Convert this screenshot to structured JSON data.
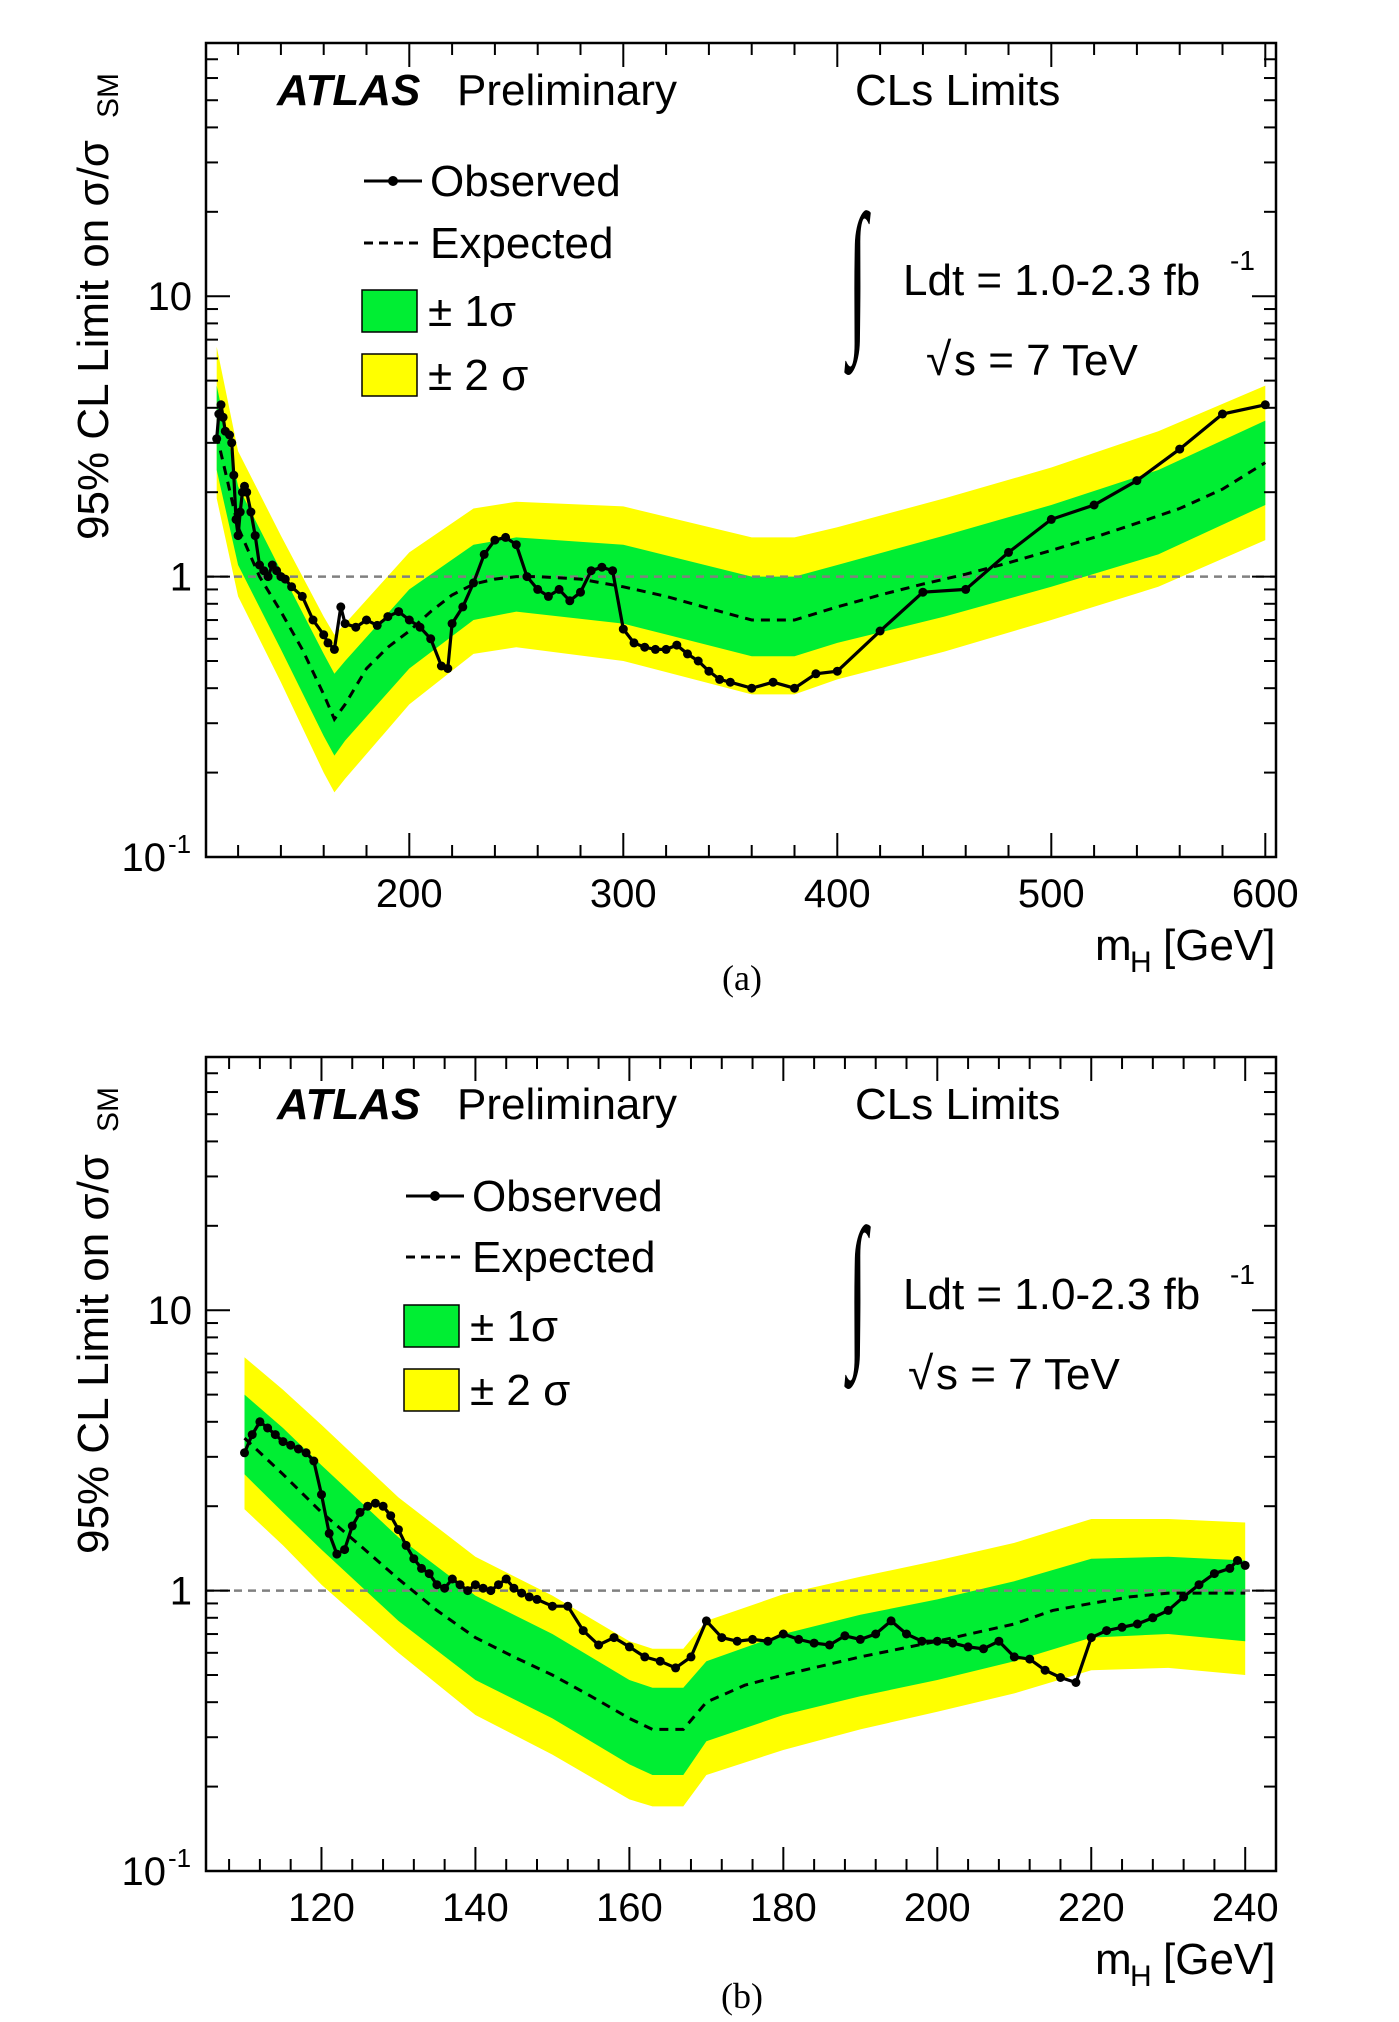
{
  "colors": {
    "band1": "#00ee33",
    "band2": "#ffff00",
    "observed": "#000000",
    "expected": "#000000",
    "reference": "#808080"
  },
  "texts": {
    "atlas": "ATLAS",
    "preliminary": "Preliminary",
    "method": "CLs Limits",
    "lumi": "Ldt = 1.0-2.3 fb",
    "lumi_exp": "-1",
    "sqrts": "s = 7 TeV",
    "legend_observed": "Observed",
    "legend_expected": "Expected",
    "legend_1sigma": "± 1σ",
    "legend_2sigma": "± 2 σ",
    "ylabel_main": "95% CL Limit on σ/σ",
    "ylabel_sub": "SM",
    "xlabel_main": "m",
    "xlabel_sub": "H",
    "xlabel_unit": "[GeV]"
  },
  "chart_data": [
    {
      "type": "line",
      "caption": "(a)",
      "xlim": [
        105,
        605
      ],
      "ylim": [
        0.1,
        80
      ],
      "yscale": "log",
      "xticks": [
        200,
        300,
        400,
        500,
        600
      ],
      "yticks": [
        {
          "v": 0.1,
          "base": "10",
          "exp": "-1"
        },
        {
          "v": 1,
          "base": "1",
          "exp": ""
        },
        {
          "v": 10,
          "base": "10",
          "exp": ""
        }
      ],
      "reference_line": 1,
      "expected": [
        [
          110,
          3.2
        ],
        [
          115,
          2.2
        ],
        [
          120,
          1.5
        ],
        [
          130,
          1.0
        ],
        [
          140,
          0.75
        ],
        [
          150,
          0.55
        ],
        [
          160,
          0.38
        ],
        [
          165,
          0.31
        ],
        [
          170,
          0.35
        ],
        [
          180,
          0.47
        ],
        [
          190,
          0.56
        ],
        [
          200,
          0.64
        ],
        [
          210,
          0.75
        ],
        [
          220,
          0.86
        ],
        [
          230,
          0.94
        ],
        [
          240,
          0.98
        ],
        [
          250,
          1.0
        ],
        [
          260,
          1.0
        ],
        [
          280,
          0.98
        ],
        [
          300,
          0.92
        ],
        [
          320,
          0.85
        ],
        [
          340,
          0.77
        ],
        [
          360,
          0.7
        ],
        [
          380,
          0.7
        ],
        [
          400,
          0.78
        ],
        [
          420,
          0.86
        ],
        [
          440,
          0.94
        ],
        [
          460,
          1.02
        ],
        [
          480,
          1.12
        ],
        [
          500,
          1.24
        ],
        [
          520,
          1.38
        ],
        [
          540,
          1.55
        ],
        [
          560,
          1.75
        ],
        [
          580,
          2.05
        ],
        [
          600,
          2.55
        ]
      ],
      "band1": [
        [
          110,
          2.4,
          4.8
        ],
        [
          120,
          1.1,
          2.1
        ],
        [
          140,
          0.55,
          1.05
        ],
        [
          160,
          0.27,
          0.53
        ],
        [
          165,
          0.23,
          0.45
        ],
        [
          170,
          0.26,
          0.5
        ],
        [
          200,
          0.47,
          0.9
        ],
        [
          230,
          0.7,
          1.3
        ],
        [
          250,
          0.75,
          1.38
        ],
        [
          300,
          0.68,
          1.3
        ],
        [
          360,
          0.52,
          1.0
        ],
        [
          380,
          0.52,
          1.0
        ],
        [
          400,
          0.58,
          1.1
        ],
        [
          450,
          0.72,
          1.4
        ],
        [
          500,
          0.92,
          1.8
        ],
        [
          550,
          1.2,
          2.4
        ],
        [
          600,
          1.8,
          3.6
        ]
      ],
      "band2": [
        [
          110,
          1.9,
          6.6
        ],
        [
          120,
          0.85,
          2.8
        ],
        [
          140,
          0.42,
          1.4
        ],
        [
          160,
          0.2,
          0.72
        ],
        [
          165,
          0.17,
          0.62
        ],
        [
          170,
          0.19,
          0.68
        ],
        [
          200,
          0.35,
          1.22
        ],
        [
          230,
          0.53,
          1.75
        ],
        [
          250,
          0.56,
          1.85
        ],
        [
          300,
          0.5,
          1.78
        ],
        [
          360,
          0.38,
          1.38
        ],
        [
          380,
          0.38,
          1.38
        ],
        [
          400,
          0.43,
          1.5
        ],
        [
          450,
          0.54,
          1.9
        ],
        [
          500,
          0.7,
          2.45
        ],
        [
          550,
          0.92,
          3.3
        ],
        [
          600,
          1.35,
          4.8
        ]
      ],
      "observed": [
        [
          110,
          3.1
        ],
        [
          111,
          3.8
        ],
        [
          112,
          4.1
        ],
        [
          113,
          3.7
        ],
        [
          114,
          3.3
        ],
        [
          116,
          3.2
        ],
        [
          117,
          3.0
        ],
        [
          118,
          2.3
        ],
        [
          119,
          1.6
        ],
        [
          120,
          1.4
        ],
        [
          121,
          1.7
        ],
        [
          122,
          2.0
        ],
        [
          123,
          2.1
        ],
        [
          124,
          2.0
        ],
        [
          126,
          1.7
        ],
        [
          128,
          1.4
        ],
        [
          130,
          1.1
        ],
        [
          132,
          1.05
        ],
        [
          134,
          1.0
        ],
        [
          136,
          1.1
        ],
        [
          138,
          1.05
        ],
        [
          140,
          1.0
        ],
        [
          142,
          0.98
        ],
        [
          145,
          0.92
        ],
        [
          150,
          0.85
        ],
        [
          155,
          0.7
        ],
        [
          160,
          0.62
        ],
        [
          162,
          0.58
        ],
        [
          165,
          0.55
        ],
        [
          168,
          0.78
        ],
        [
          170,
          0.68
        ],
        [
          175,
          0.66
        ],
        [
          180,
          0.7
        ],
        [
          185,
          0.67
        ],
        [
          190,
          0.72
        ],
        [
          195,
          0.75
        ],
        [
          200,
          0.7
        ],
        [
          205,
          0.66
        ],
        [
          210,
          0.6
        ],
        [
          215,
          0.48
        ],
        [
          218,
          0.47
        ],
        [
          220,
          0.68
        ],
        [
          225,
          0.78
        ],
        [
          230,
          0.95
        ],
        [
          235,
          1.2
        ],
        [
          240,
          1.35
        ],
        [
          245,
          1.38
        ],
        [
          250,
          1.3
        ],
        [
          255,
          1.0
        ],
        [
          260,
          0.9
        ],
        [
          265,
          0.85
        ],
        [
          270,
          0.9
        ],
        [
          275,
          0.82
        ],
        [
          280,
          0.88
        ],
        [
          285,
          1.05
        ],
        [
          290,
          1.08
        ],
        [
          295,
          1.05
        ],
        [
          300,
          0.65
        ],
        [
          305,
          0.58
        ],
        [
          310,
          0.56
        ],
        [
          315,
          0.55
        ],
        [
          320,
          0.55
        ],
        [
          325,
          0.57
        ],
        [
          330,
          0.53
        ],
        [
          335,
          0.5
        ],
        [
          340,
          0.46
        ],
        [
          345,
          0.43
        ],
        [
          350,
          0.42
        ],
        [
          360,
          0.4
        ],
        [
          370,
          0.42
        ],
        [
          380,
          0.4
        ],
        [
          390,
          0.45
        ],
        [
          400,
          0.46
        ],
        [
          420,
          0.64
        ],
        [
          440,
          0.88
        ],
        [
          460,
          0.9
        ],
        [
          480,
          1.22
        ],
        [
          500,
          1.6
        ],
        [
          520,
          1.8
        ],
        [
          540,
          2.2
        ],
        [
          560,
          2.85
        ],
        [
          580,
          3.8
        ],
        [
          600,
          4.1
        ]
      ]
    },
    {
      "type": "line",
      "caption": "(b)",
      "xlim": [
        105,
        244
      ],
      "ylim": [
        0.1,
        80
      ],
      "yscale": "log",
      "xticks": [
        120,
        140,
        160,
        180,
        200,
        220,
        240
      ],
      "yticks": [
        {
          "v": 0.1,
          "base": "10",
          "exp": "-1"
        },
        {
          "v": 1,
          "base": "1",
          "exp": ""
        },
        {
          "v": 10,
          "base": "10",
          "exp": ""
        }
      ],
      "reference_line": 1,
      "expected": [
        [
          110,
          3.5
        ],
        [
          115,
          2.6
        ],
        [
          120,
          1.9
        ],
        [
          125,
          1.45
        ],
        [
          130,
          1.1
        ],
        [
          135,
          0.85
        ],
        [
          140,
          0.68
        ],
        [
          145,
          0.58
        ],
        [
          150,
          0.5
        ],
        [
          155,
          0.42
        ],
        [
          160,
          0.35
        ],
        [
          163,
          0.32
        ],
        [
          167,
          0.32
        ],
        [
          170,
          0.4
        ],
        [
          175,
          0.46
        ],
        [
          180,
          0.5
        ],
        [
          190,
          0.58
        ],
        [
          200,
          0.66
        ],
        [
          210,
          0.76
        ],
        [
          215,
          0.85
        ],
        [
          220,
          0.9
        ],
        [
          225,
          0.95
        ],
        [
          230,
          0.98
        ],
        [
          240,
          0.98
        ]
      ],
      "band1": [
        [
          110,
          2.6,
          5.0
        ],
        [
          115,
          1.9,
          3.8
        ],
        [
          120,
          1.4,
          2.8
        ],
        [
          130,
          0.78,
          1.55
        ],
        [
          140,
          0.48,
          0.96
        ],
        [
          150,
          0.35,
          0.7
        ],
        [
          160,
          0.24,
          0.48
        ],
        [
          163,
          0.22,
          0.45
        ],
        [
          167,
          0.22,
          0.45
        ],
        [
          170,
          0.29,
          0.56
        ],
        [
          180,
          0.36,
          0.7
        ],
        [
          190,
          0.42,
          0.82
        ],
        [
          200,
          0.48,
          0.93
        ],
        [
          210,
          0.56,
          1.08
        ],
        [
          220,
          0.68,
          1.3
        ],
        [
          230,
          0.7,
          1.32
        ],
        [
          240,
          0.66,
          1.28
        ]
      ],
      "band2": [
        [
          110,
          1.95,
          6.8
        ],
        [
          115,
          1.45,
          5.2
        ],
        [
          120,
          1.05,
          3.9
        ],
        [
          130,
          0.6,
          2.15
        ],
        [
          140,
          0.36,
          1.32
        ],
        [
          150,
          0.26,
          0.96
        ],
        [
          160,
          0.18,
          0.66
        ],
        [
          163,
          0.17,
          0.62
        ],
        [
          167,
          0.17,
          0.62
        ],
        [
          170,
          0.22,
          0.78
        ],
        [
          180,
          0.27,
          0.97
        ],
        [
          190,
          0.32,
          1.12
        ],
        [
          200,
          0.37,
          1.28
        ],
        [
          210,
          0.43,
          1.48
        ],
        [
          220,
          0.52,
          1.8
        ],
        [
          230,
          0.53,
          1.8
        ],
        [
          240,
          0.5,
          1.75
        ]
      ],
      "observed": [
        [
          110,
          3.1
        ],
        [
          111,
          3.6
        ],
        [
          112,
          4.0
        ],
        [
          113,
          3.8
        ],
        [
          114,
          3.6
        ],
        [
          115,
          3.4
        ],
        [
          116,
          3.3
        ],
        [
          117,
          3.2
        ],
        [
          118,
          3.1
        ],
        [
          119,
          2.9
        ],
        [
          120,
          2.2
        ],
        [
          121,
          1.6
        ],
        [
          122,
          1.35
        ],
        [
          123,
          1.4
        ],
        [
          124,
          1.7
        ],
        [
          125,
          1.9
        ],
        [
          126,
          2.0
        ],
        [
          127,
          2.05
        ],
        [
          128,
          2.0
        ],
        [
          129,
          1.85
        ],
        [
          130,
          1.65
        ],
        [
          131,
          1.45
        ],
        [
          132,
          1.3
        ],
        [
          133,
          1.2
        ],
        [
          134,
          1.15
        ],
        [
          135,
          1.05
        ],
        [
          136,
          1.02
        ],
        [
          137,
          1.1
        ],
        [
          138,
          1.05
        ],
        [
          139,
          1.0
        ],
        [
          140,
          1.05
        ],
        [
          141,
          1.02
        ],
        [
          142,
          1.0
        ],
        [
          143,
          1.05
        ],
        [
          144,
          1.1
        ],
        [
          145,
          1.02
        ],
        [
          146,
          0.98
        ],
        [
          147,
          0.95
        ],
        [
          148,
          0.93
        ],
        [
          150,
          0.88
        ],
        [
          152,
          0.88
        ],
        [
          154,
          0.72
        ],
        [
          156,
          0.64
        ],
        [
          158,
          0.68
        ],
        [
          160,
          0.63
        ],
        [
          162,
          0.58
        ],
        [
          164,
          0.56
        ],
        [
          166,
          0.53
        ],
        [
          168,
          0.58
        ],
        [
          170,
          0.78
        ],
        [
          172,
          0.68
        ],
        [
          174,
          0.66
        ],
        [
          176,
          0.67
        ],
        [
          178,
          0.66
        ],
        [
          180,
          0.7
        ],
        [
          182,
          0.67
        ],
        [
          184,
          0.65
        ],
        [
          186,
          0.64
        ],
        [
          188,
          0.69
        ],
        [
          190,
          0.67
        ],
        [
          192,
          0.7
        ],
        [
          194,
          0.78
        ],
        [
          196,
          0.7
        ],
        [
          198,
          0.66
        ],
        [
          200,
          0.66
        ],
        [
          202,
          0.65
        ],
        [
          204,
          0.63
        ],
        [
          206,
          0.62
        ],
        [
          208,
          0.66
        ],
        [
          210,
          0.58
        ],
        [
          212,
          0.57
        ],
        [
          214,
          0.52
        ],
        [
          216,
          0.49
        ],
        [
          218,
          0.47
        ],
        [
          220,
          0.68
        ],
        [
          222,
          0.72
        ],
        [
          224,
          0.74
        ],
        [
          226,
          0.76
        ],
        [
          228,
          0.8
        ],
        [
          230,
          0.85
        ],
        [
          232,
          0.95
        ],
        [
          234,
          1.05
        ],
        [
          236,
          1.15
        ],
        [
          238,
          1.2
        ],
        [
          239,
          1.28
        ],
        [
          240,
          1.23
        ]
      ]
    }
  ]
}
